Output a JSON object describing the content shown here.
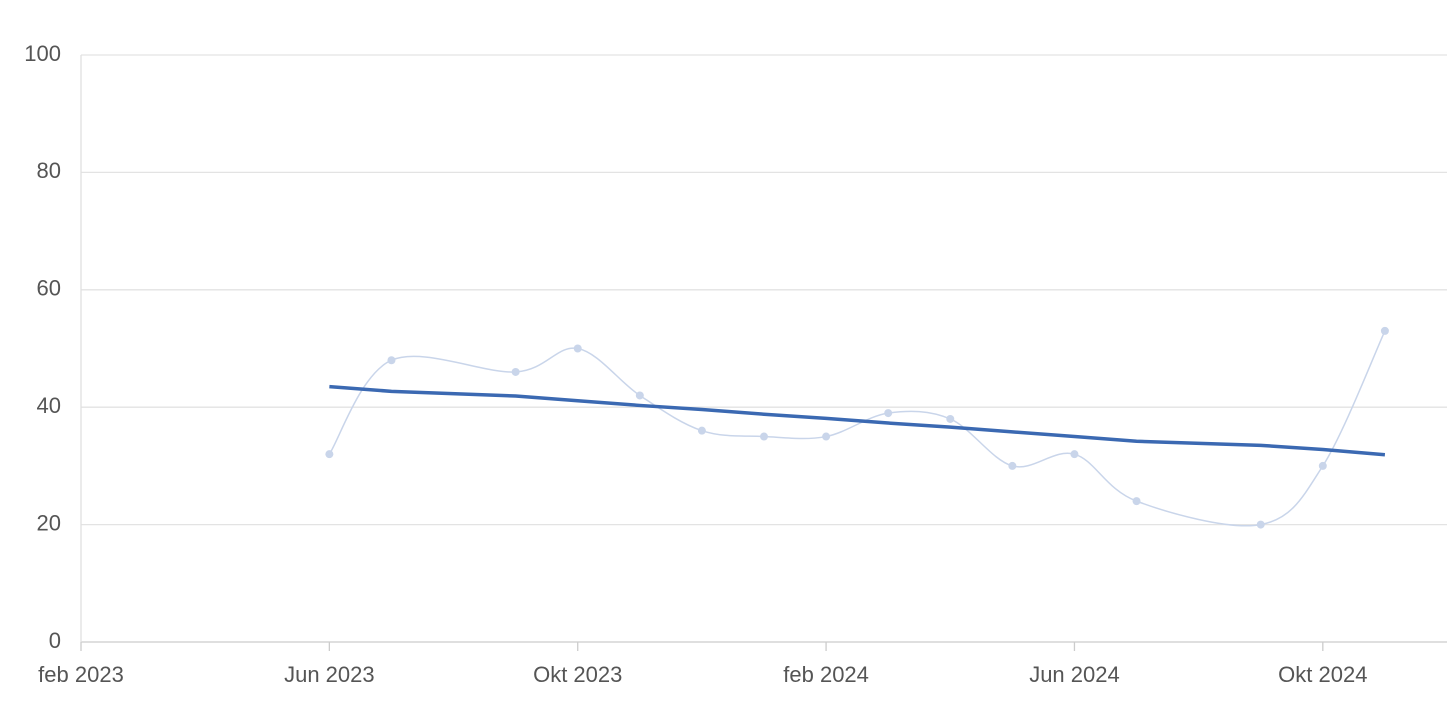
{
  "chart_data": {
    "type": "line",
    "x": [
      "2023-06",
      "2023-07",
      "2023-09",
      "2023-10",
      "2023-11",
      "2023-12",
      "2024-01",
      "2024-02",
      "2024-03",
      "2024-04",
      "2024-05",
      "2024-06",
      "2024-07",
      "2024-09",
      "2024-10",
      "2024-11"
    ],
    "series": [
      {
        "color": "#c9d5ea",
        "smooth": true,
        "markers": true,
        "values": [
          32,
          48,
          46,
          50,
          42,
          36,
          35,
          35,
          39,
          38,
          30,
          32,
          24,
          20,
          30,
          53
        ]
      },
      {
        "color": "#3b69b2",
        "smooth": false,
        "markers": false,
        "values": [
          43.5,
          42.7,
          41.9,
          41.1,
          40.3,
          39.6,
          38.8,
          38.1,
          37.3,
          36.6,
          35.8,
          35.0,
          34.2,
          33.5,
          32.8,
          31.9
        ]
      }
    ],
    "xlim": [
      "2023-02",
      "2024-12"
    ],
    "xticks": [
      {
        "value": "2023-02",
        "label": "feb 2023"
      },
      {
        "value": "2023-06",
        "label": "Jun 2023"
      },
      {
        "value": "2023-10",
        "label": "Okt 2023"
      },
      {
        "value": "2024-02",
        "label": "feb 2024"
      },
      {
        "value": "2024-06",
        "label": "Jun 2024"
      },
      {
        "value": "2024-10",
        "label": "Okt 2024"
      }
    ],
    "ylim": [
      0,
      100
    ],
    "yticks": [
      0,
      20,
      40,
      60,
      80,
      100
    ],
    "grid": true
  }
}
